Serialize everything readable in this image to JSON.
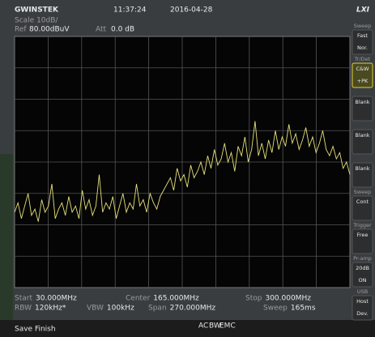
{
  "header": {
    "brand": "GWINSTEK",
    "time": "11:37:24",
    "date": "2016-04-28",
    "logo": "LXI"
  },
  "settings": {
    "scale": "Scale 10dB/",
    "ref_label": "Ref",
    "ref_value": "80.00dBuV",
    "att_label": "Att",
    "att_value": "0.0 dB"
  },
  "footer": [
    [
      {
        "label": "Start",
        "value": "30.000MHz"
      },
      {
        "label": "Center",
        "value": "165.000MHz"
      },
      {
        "label": "Stop",
        "value": "300.000MHz"
      }
    ],
    [
      {
        "label": "RBW",
        "value": "120kHz*"
      },
      {
        "label": "VBW",
        "value": "100kHz"
      },
      {
        "label": "Span",
        "value": "270.000MHz"
      },
      {
        "label": "Sweep",
        "value": "165ms"
      }
    ]
  ],
  "status": "Save Finish",
  "indicators": [
    "AC",
    "BW",
    "EMC"
  ],
  "softkeys": [
    {
      "title": "Sweep",
      "lines": [
        "Fast",
        "Nor."
      ]
    },
    {
      "title": "Tr/Det",
      "lines": [
        "C&W",
        "+PK"
      ]
    },
    {
      "title": "",
      "lines": [
        "Blank"
      ]
    },
    {
      "title": "",
      "lines": [
        "Blank"
      ]
    },
    {
      "title": "",
      "lines": [
        "Blank"
      ]
    },
    {
      "title": "Sweep",
      "lines": [
        "Cont"
      ]
    },
    {
      "title": "Trigger",
      "lines": [
        "Free"
      ]
    },
    {
      "title": "Pr-amp",
      "lines": [
        "20dB",
        "ON"
      ]
    },
    {
      "title": "USB",
      "lines": [
        "Host",
        "Dev."
      ]
    }
  ],
  "trace": {
    "ylim": [
      0,
      80
    ],
    "values": [
      24,
      27,
      22,
      26,
      30,
      23,
      25,
      21,
      28,
      24,
      26,
      33,
      22,
      25,
      27,
      23,
      29,
      24,
      26,
      22,
      31,
      25,
      28,
      23,
      26,
      36,
      24,
      27,
      25,
      29,
      22,
      26,
      30,
      24,
      27,
      25,
      33,
      26,
      28,
      24,
      30,
      27,
      25,
      29,
      31,
      33,
      35,
      31,
      38,
      34,
      36,
      32,
      39,
      35,
      37,
      40,
      36,
      42,
      38,
      44,
      39,
      41,
      46,
      40,
      43,
      37,
      45,
      42,
      48,
      40,
      44,
      53,
      42,
      46,
      41,
      47,
      43,
      50,
      44,
      48,
      45,
      52,
      46,
      49,
      44,
      47,
      51,
      45,
      48,
      43,
      46,
      50,
      44,
      42,
      45,
      41,
      43,
      38,
      40,
      36
    ]
  }
}
